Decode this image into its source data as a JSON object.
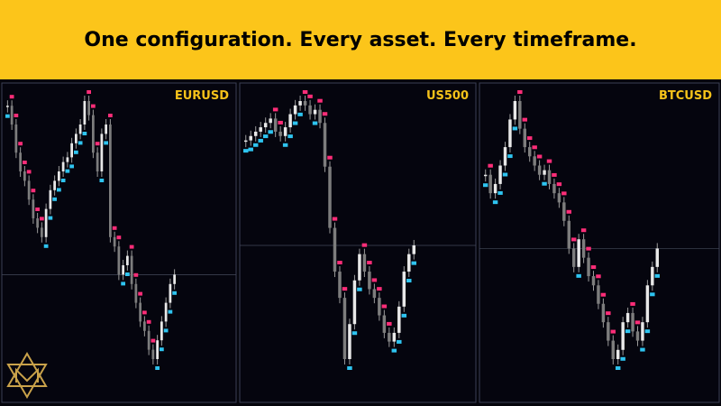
{
  "header": {
    "title": "One configuration. Every asset. Every timeframe."
  },
  "panels": [
    {
      "symbol": "EURUSD",
      "closes": [
        330,
        310,
        280,
        260,
        250,
        230,
        210,
        200,
        190,
        220,
        240,
        250,
        260,
        270,
        275,
        290,
        300,
        310,
        335,
        320,
        280,
        260,
        300,
        310,
        190,
        180,
        150,
        160,
        170,
        140,
        120,
        100,
        90,
        70,
        60,
        80,
        100,
        120,
        140,
        150
      ]
    },
    {
      "symbol": "US500",
      "closes": [
        300,
        305,
        310,
        315,
        320,
        325,
        310,
        305,
        315,
        330,
        340,
        345,
        340,
        330,
        335,
        320,
        270,
        200,
        150,
        120,
        50,
        90,
        140,
        170,
        150,
        130,
        120,
        100,
        80,
        70,
        80,
        110,
        150,
        170,
        180
      ]
    },
    {
      "symbol": "BTCUSD",
      "closes": [
        270,
        250,
        260,
        280,
        300,
        330,
        350,
        320,
        300,
        290,
        280,
        270,
        275,
        260,
        250,
        240,
        220,
        190,
        170,
        200,
        180,
        160,
        150,
        130,
        110,
        90,
        70,
        80,
        110,
        120,
        100,
        90,
        110,
        150,
        170,
        190
      ]
    }
  ]
}
